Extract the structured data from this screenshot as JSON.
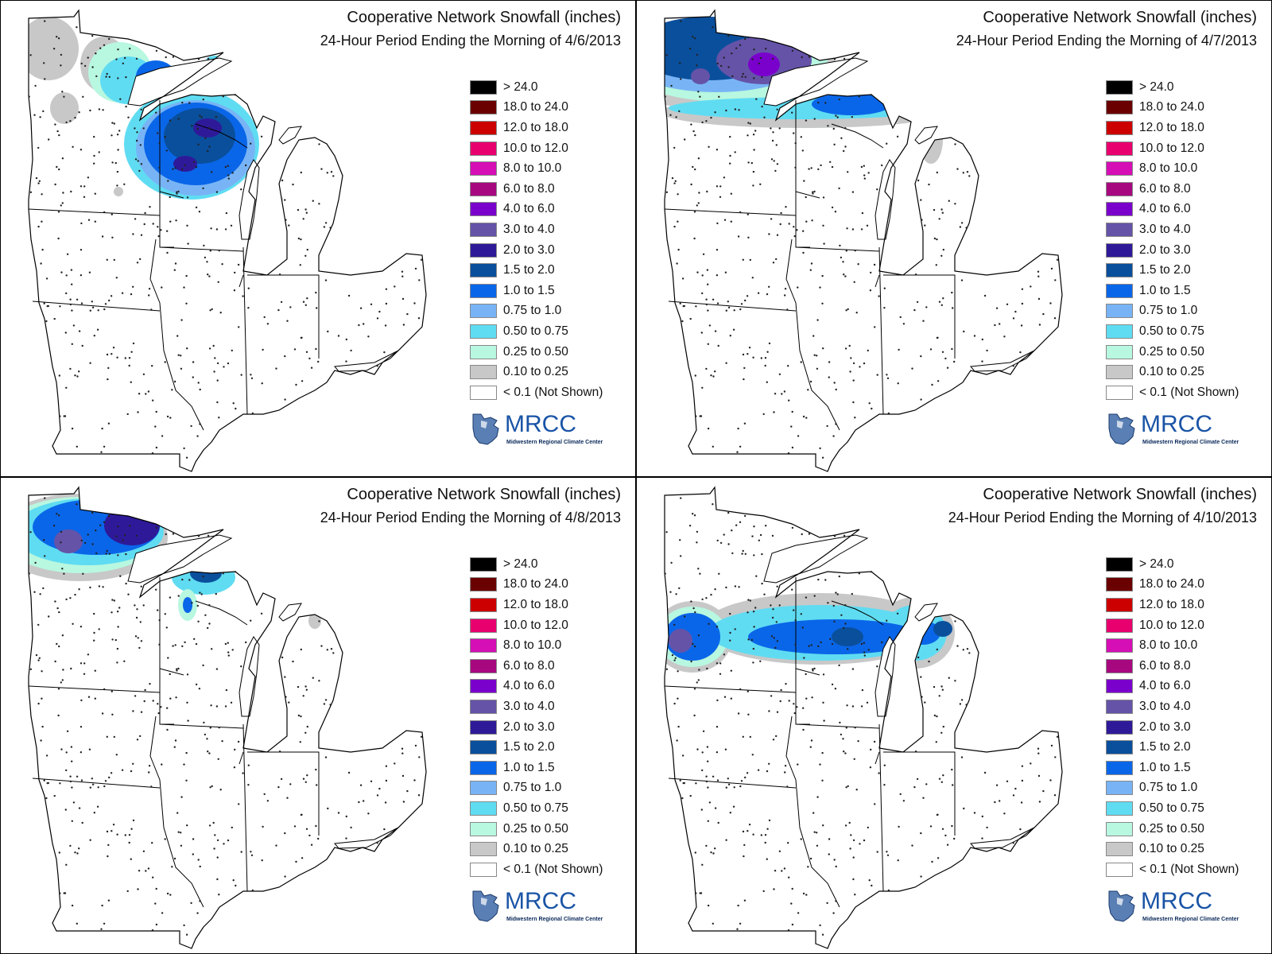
{
  "panels": [
    {
      "title": "Cooperative Network Snowfall (inches)",
      "subtitle": "24-Hour Period Ending the Morning of 4/6/2013",
      "scenario": "d406"
    },
    {
      "title": "Cooperative Network Snowfall (inches)",
      "subtitle": "24-Hour Period Ending the Morning of 4/7/2013",
      "scenario": "d407"
    },
    {
      "title": "Cooperative Network Snowfall (inches)",
      "subtitle": "24-Hour Period Ending the Morning of 4/8/2013",
      "scenario": "d408"
    },
    {
      "title": "Cooperative Network Snowfall (inches)",
      "subtitle": "24-Hour Period Ending the Morning of 4/10/2013",
      "scenario": "d410"
    }
  ],
  "legend": [
    {
      "label": "> 24.0",
      "color": "#000000"
    },
    {
      "label": "18.0 to 24.0",
      "color": "#6b0000"
    },
    {
      "label": "12.0 to 18.0",
      "color": "#cc0000"
    },
    {
      "label": "10.0 to 12.0",
      "color": "#e8006e"
    },
    {
      "label": "8.0 to 10.0",
      "color": "#d60eb5"
    },
    {
      "label": "6.0 to 8.0",
      "color": "#a7087f"
    },
    {
      "label": "4.0 to 6.0",
      "color": "#7a00cc"
    },
    {
      "label": "3.0 to 4.0",
      "color": "#6553a8"
    },
    {
      "label": "2.0 to 3.0",
      "color": "#2e1a99"
    },
    {
      "label": "1.5 to 2.0",
      "color": "#0a4f9c"
    },
    {
      "label": "1.0 to 1.5",
      "color": "#0a66e8"
    },
    {
      "label": "0.75 to 1.0",
      "color": "#78b4f5"
    },
    {
      "label": "0.50 to 0.75",
      "color": "#5fdcf2"
    },
    {
      "label": "0.25 to 0.50",
      "color": "#b8f7e0"
    },
    {
      "label": "0.10 to 0.25",
      "color": "#c8c8c8"
    },
    {
      "label": "< 0.1 (Not Shown)",
      "color": "#ffffff"
    }
  ],
  "logo": {
    "name": "MRCC",
    "subtitle": "Midwestern Regional Climate Center"
  },
  "colors": {
    "border": "#000000",
    "station": "#222222"
  }
}
